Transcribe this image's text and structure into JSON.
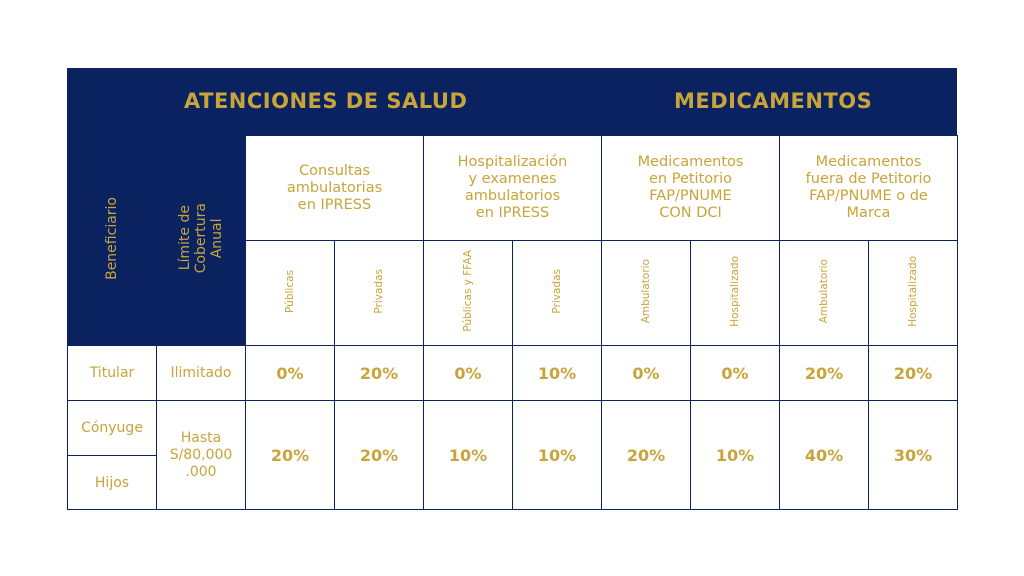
{
  "banner": {
    "left": "ATENCIONES DE SALUD",
    "right": "MEDICAMENTOS"
  },
  "headers": {
    "beneficiario": "Beneficiario",
    "limite": "Límite de\nCobertura\nAnual",
    "groups": [
      "Consultas\nambulatorias\nen IPRESS",
      "Hospitalización\ny examenes\nambulatorios\nen IPRESS",
      "Medicamentos\nen Petitorio\nFAP/PNUME\nCON DCI",
      "Medicamentos\nfuera de Petitorio\nFAP/PNUME o de\nMarca"
    ],
    "subs": [
      "Públicas",
      "Privadas",
      "Públicas y FFAA",
      "Privadas",
      "Ambulatorio",
      "Hospitalizado",
      "Ambulatorio",
      "Hospitalizado"
    ]
  },
  "rows": {
    "titular": {
      "label": "Titular",
      "limit": "Ilimitado",
      "values": [
        "0%",
        "20%",
        "0%",
        "10%",
        "0%",
        "0%",
        "20%",
        "20%"
      ]
    },
    "conyuge": {
      "label": "Cónyuge"
    },
    "hijos": {
      "label": "Hijos"
    },
    "shared": {
      "limit": "Hasta\nS/80,000\n.000",
      "values": [
        "20%",
        "20%",
        "10%",
        "10%",
        "20%",
        "10%",
        "40%",
        "30%"
      ]
    }
  },
  "colors": {
    "navy": "#0b2260",
    "gold": "#c9a43a"
  }
}
